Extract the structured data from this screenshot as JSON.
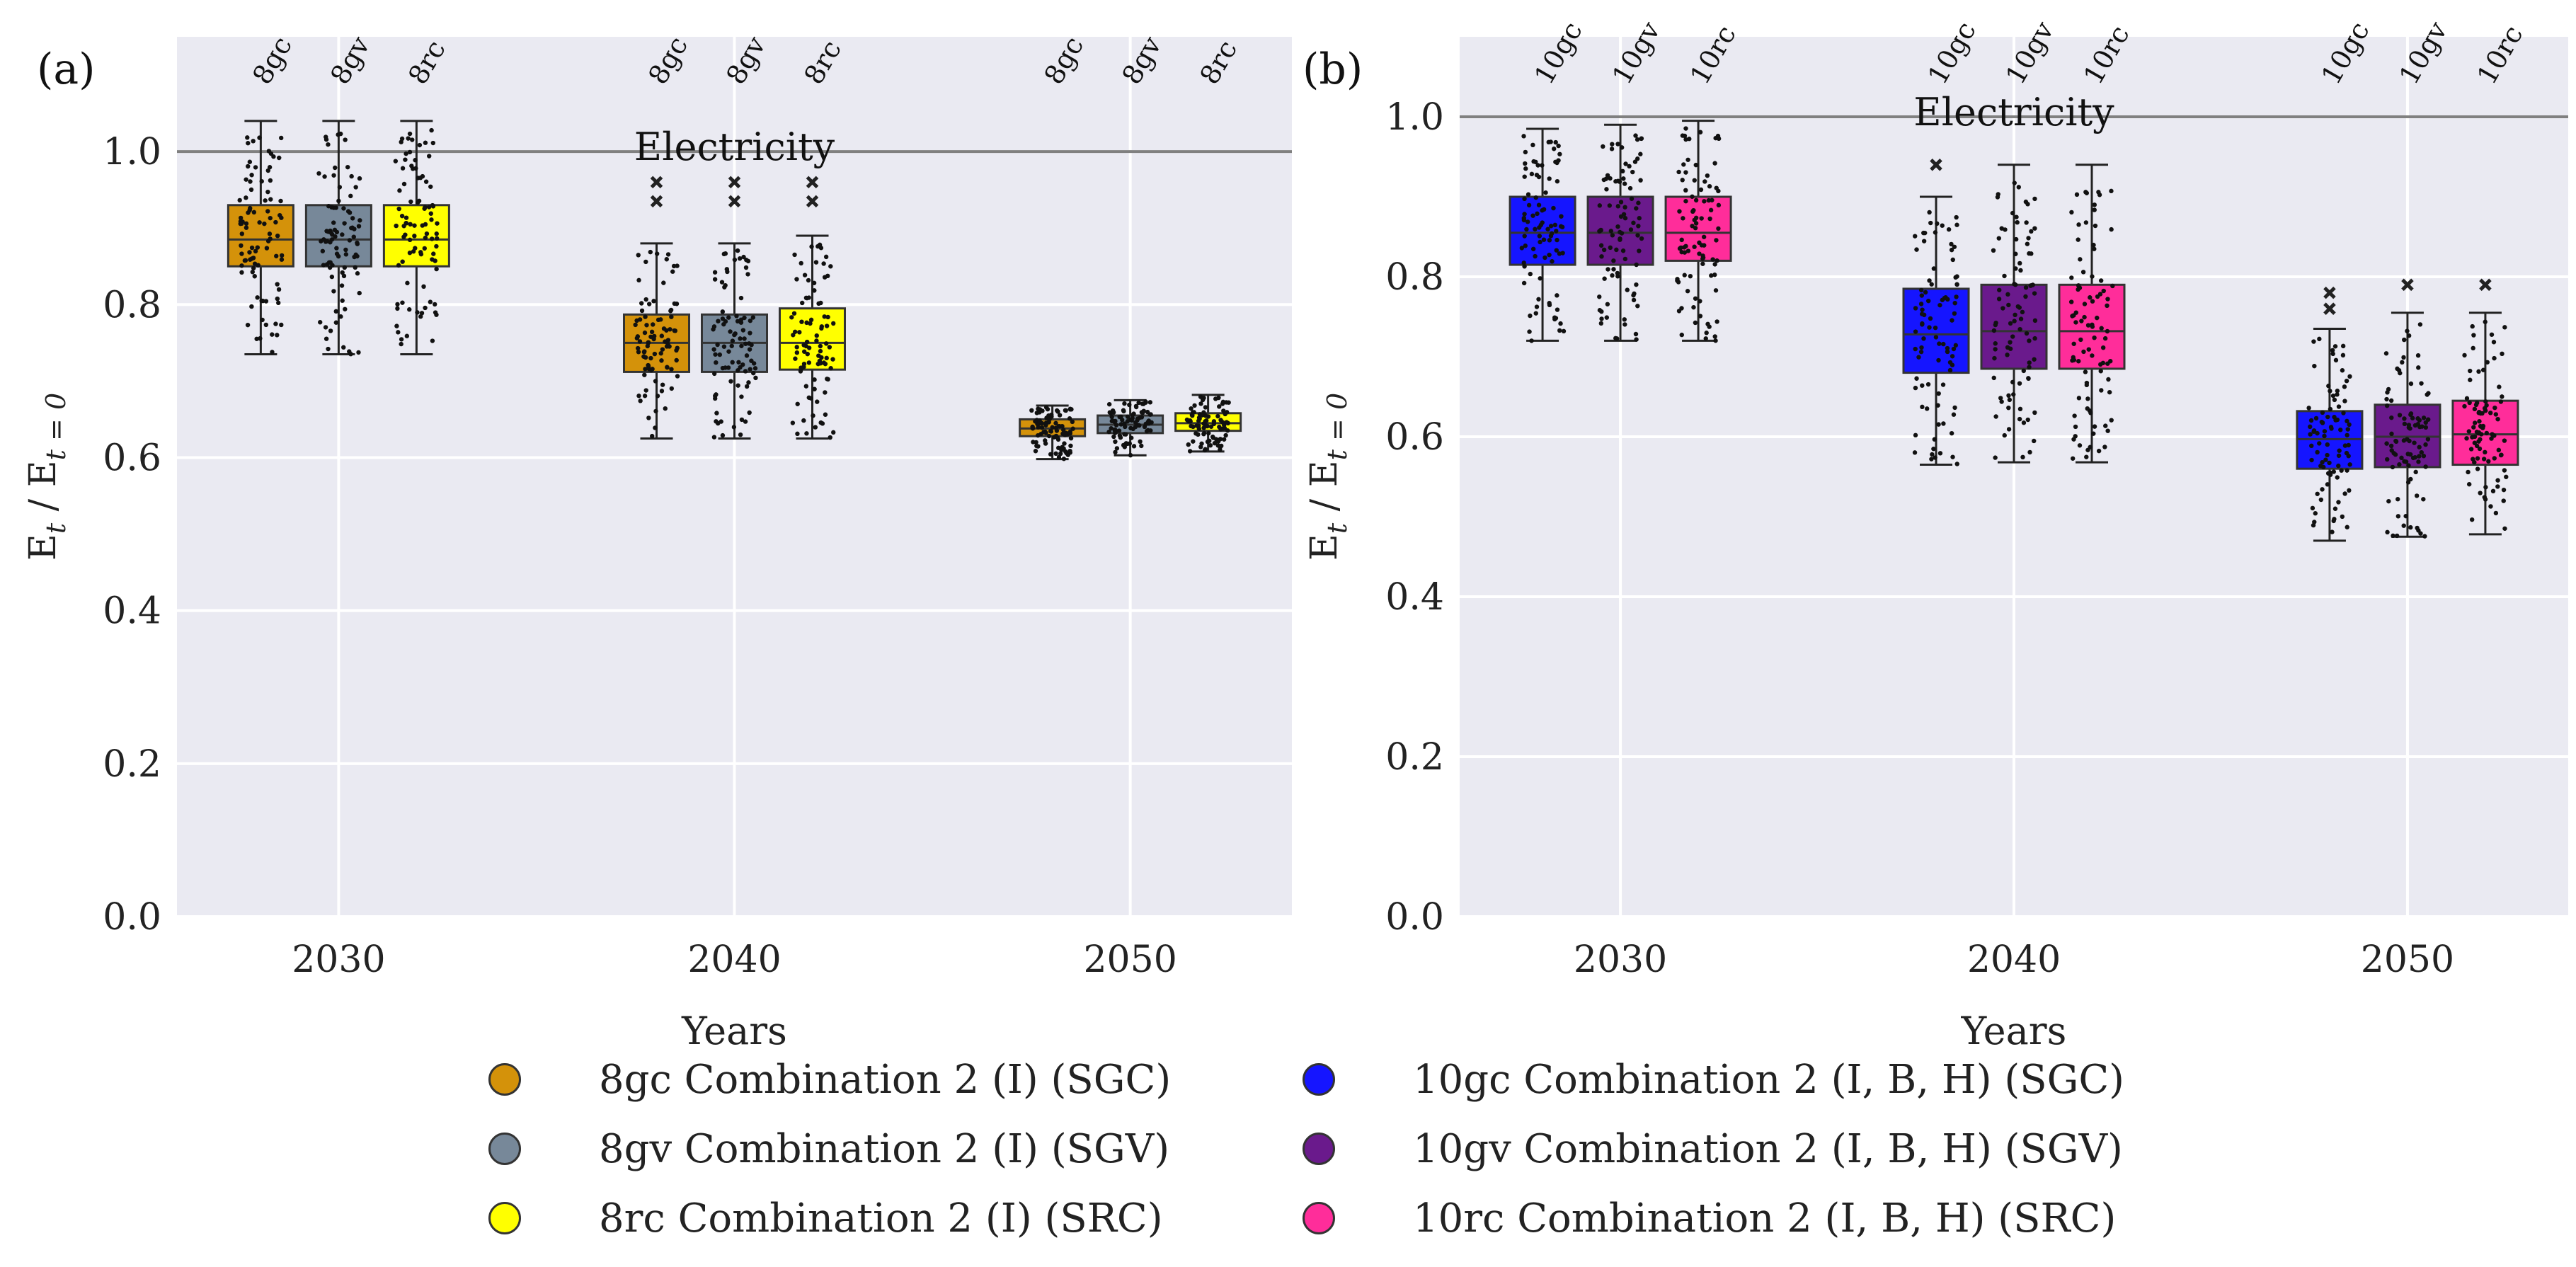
{
  "chart_data": [
    {
      "type": "box",
      "panel_label": "(a)",
      "annotation": "Electricity",
      "reference_line": 1.0,
      "xlabel": "Years",
      "ylabel": "E",
      "ylabel_sub1": "t",
      "ylabel_mid": " / E",
      "ylabel_sub2": "t = 0",
      "ylim": [
        0,
        1.15
      ],
      "yticks": [
        "0.0",
        "0.2",
        "0.4",
        "0.6",
        "0.8",
        "1.0"
      ],
      "ytick_values": [
        0,
        0.2,
        0.4,
        0.6,
        0.8,
        1.0
      ],
      "categories": [
        "2030",
        "2040",
        "2050"
      ],
      "series": [
        {
          "name": "8gc",
          "color": "#d4920a",
          "boxes": [
            {
              "whislo": 0.735,
              "q1": 0.85,
              "med": 0.885,
              "q3": 0.93,
              "whishi": 1.04,
              "fliers": []
            },
            {
              "whislo": 0.625,
              "q1": 0.712,
              "med": 0.75,
              "q3": 0.787,
              "whishi": 0.88,
              "fliers": [
                0.96,
                0.935
              ]
            },
            {
              "whislo": 0.598,
              "q1": 0.628,
              "med": 0.638,
              "q3": 0.65,
              "whishi": 0.668,
              "fliers": []
            }
          ]
        },
        {
          "name": "8gv",
          "color": "#778899",
          "boxes": [
            {
              "whislo": 0.735,
              "q1": 0.85,
              "med": 0.885,
              "q3": 0.93,
              "whishi": 1.04,
              "fliers": []
            },
            {
              "whislo": 0.625,
              "q1": 0.712,
              "med": 0.75,
              "q3": 0.787,
              "whishi": 0.88,
              "fliers": [
                0.96,
                0.935
              ]
            },
            {
              "whislo": 0.603,
              "q1": 0.632,
              "med": 0.643,
              "q3": 0.655,
              "whishi": 0.675,
              "fliers": []
            }
          ]
        },
        {
          "name": "8rc",
          "color": "#ffff00",
          "boxes": [
            {
              "whislo": 0.735,
              "q1": 0.85,
              "med": 0.885,
              "q3": 0.93,
              "whishi": 1.04,
              "fliers": []
            },
            {
              "whislo": 0.625,
              "q1": 0.715,
              "med": 0.75,
              "q3": 0.795,
              "whishi": 0.89,
              "fliers": [
                0.96,
                0.935
              ]
            },
            {
              "whislo": 0.608,
              "q1": 0.635,
              "med": 0.645,
              "q3": 0.658,
              "whishi": 0.682,
              "fliers": []
            }
          ]
        }
      ]
    },
    {
      "type": "box",
      "panel_label": "(b)",
      "annotation": "Electricity",
      "reference_line": 1.0,
      "xlabel": "Years",
      "ylabel": "E",
      "ylabel_sub1": "t",
      "ylabel_mid": " / E",
      "ylabel_sub2": "t = 0",
      "ylim": [
        0,
        1.1
      ],
      "yticks": [
        "0.0",
        "0.2",
        "0.4",
        "0.6",
        "0.8",
        "1.0"
      ],
      "ytick_values": [
        0,
        0.2,
        0.4,
        0.6,
        0.8,
        1.0
      ],
      "categories": [
        "2030",
        "2040",
        "2050"
      ],
      "series": [
        {
          "name": "10gc",
          "color": "#1515ff",
          "boxes": [
            {
              "whislo": 0.72,
              "q1": 0.815,
              "med": 0.855,
              "q3": 0.9,
              "whishi": 0.985,
              "fliers": []
            },
            {
              "whislo": 0.565,
              "q1": 0.68,
              "med": 0.728,
              "q3": 0.785,
              "whishi": 0.9,
              "fliers": [
                0.94
              ]
            },
            {
              "whislo": 0.47,
              "q1": 0.56,
              "med": 0.597,
              "q3": 0.632,
              "whishi": 0.735,
              "fliers": [
                0.78,
                0.76
              ]
            }
          ]
        },
        {
          "name": "10gv",
          "color": "#6a1a8c",
          "boxes": [
            {
              "whislo": 0.72,
              "q1": 0.815,
              "med": 0.855,
              "q3": 0.9,
              "whishi": 0.99,
              "fliers": []
            },
            {
              "whislo": 0.568,
              "q1": 0.685,
              "med": 0.732,
              "q3": 0.79,
              "whishi": 0.94,
              "fliers": []
            },
            {
              "whislo": 0.475,
              "q1": 0.562,
              "med": 0.6,
              "q3": 0.64,
              "whishi": 0.755,
              "fliers": [
                0.79
              ]
            }
          ]
        },
        {
          "name": "10rc",
          "color": "#ff2d9a",
          "boxes": [
            {
              "whislo": 0.72,
              "q1": 0.82,
              "med": 0.855,
              "q3": 0.9,
              "whishi": 0.995,
              "fliers": []
            },
            {
              "whislo": 0.568,
              "q1": 0.685,
              "med": 0.732,
              "q3": 0.79,
              "whishi": 0.94,
              "fliers": []
            },
            {
              "whislo": 0.478,
              "q1": 0.565,
              "med": 0.603,
              "q3": 0.645,
              "whishi": 0.755,
              "fliers": [
                0.79
              ]
            }
          ]
        }
      ]
    }
  ],
  "legend": [
    {
      "label": "8gc Combination 2 (I) (SGC)",
      "color": "#d4920a"
    },
    {
      "label": "8gv Combination 2 (I) (SGV)",
      "color": "#778899"
    },
    {
      "label": "8rc Combination 2 (I) (SRC)",
      "color": "#ffff00"
    },
    {
      "label": "10gc Combination 2 (I, B, H) (SGC)",
      "color": "#1515ff"
    },
    {
      "label": "10gv Combination 2 (I, B, H) (SGV)",
      "color": "#6a1a8c"
    },
    {
      "label": "10rc Combination 2 (I, B, H) (SRC)",
      "color": "#ff2d9a"
    }
  ]
}
